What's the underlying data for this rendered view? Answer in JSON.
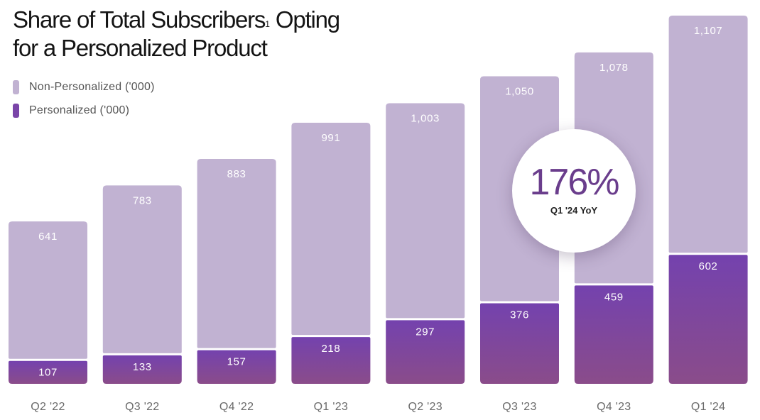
{
  "title_line1": "Share of Total Subscribers",
  "title_sup": "1",
  "title_line1_end": " Opting",
  "title_line2": "for a Personalized Product",
  "legend": [
    {
      "label": "Non-Personalized ('000)",
      "color": "#c1b2d2"
    },
    {
      "label": "Personalized ('000)",
      "color": "#7a45a8"
    }
  ],
  "callout": {
    "value": "176%",
    "label": "Q1 '24 YoY"
  },
  "chart_data": {
    "type": "bar",
    "stacked": true,
    "categories": [
      "Q2 '22",
      "Q3 '22",
      "Q4 '22",
      "Q1 '23",
      "Q2 '23",
      "Q3 '23",
      "Q4 '23",
      "Q1 '24"
    ],
    "series": [
      {
        "name": "Personalized ('000)",
        "values": [
          107,
          133,
          157,
          218,
          297,
          376,
          459,
          602
        ],
        "color": "#7a45a8"
      },
      {
        "name": "Non-Personalized ('000)",
        "values": [
          641,
          783,
          883,
          991,
          1003,
          1050,
          1078,
          1107
        ],
        "color": "#c1b2d2"
      }
    ],
    "value_labels": {
      "Personalized ('000)": [
        "107",
        "133",
        "157",
        "218",
        "297",
        "376",
        "459",
        "602"
      ],
      "Non-Personalized ('000)": [
        "641",
        "783",
        "883",
        "991",
        "1,003",
        "1,050",
        "1,078",
        "1,107"
      ]
    },
    "ylim": [
      0,
      1709
    ],
    "grid": false,
    "legend_position": "top-left"
  }
}
